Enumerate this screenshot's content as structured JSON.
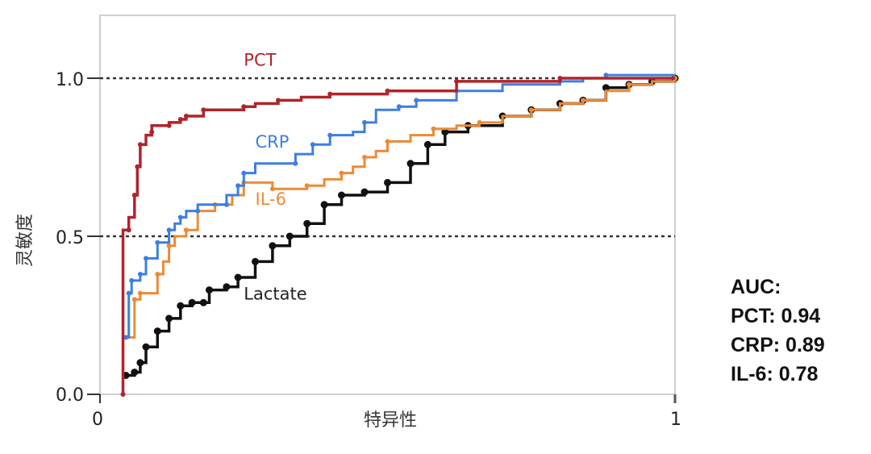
{
  "chart_data": {
    "type": "line",
    "title": "",
    "xlabel": "特异性",
    "ylabel": "灵敏度",
    "xlim": [
      0,
      1
    ],
    "ylim": [
      0,
      1.0
    ],
    "x_ticks": [
      "0",
      "1"
    ],
    "y_ticks": [
      "0.0",
      "0.5",
      "1.0"
    ],
    "reference_lines": [
      {
        "axis": "y",
        "value": 1.0,
        "style": "dotted"
      },
      {
        "axis": "y",
        "value": 0.5,
        "style": "dotted"
      }
    ],
    "grid": false,
    "legend": "inline labels",
    "series": [
      {
        "name": "PCT",
        "color": "#b2232a",
        "label_pos": {
          "x": 0.25,
          "y": 1.04
        },
        "points": [
          [
            0.04,
            0.0
          ],
          [
            0.04,
            0.52
          ],
          [
            0.05,
            0.52
          ],
          [
            0.05,
            0.56
          ],
          [
            0.06,
            0.63
          ],
          [
            0.065,
            0.63
          ],
          [
            0.065,
            0.72
          ],
          [
            0.07,
            0.72
          ],
          [
            0.07,
            0.79
          ],
          [
            0.08,
            0.82
          ],
          [
            0.09,
            0.83
          ],
          [
            0.09,
            0.85
          ],
          [
            0.12,
            0.85
          ],
          [
            0.12,
            0.86
          ],
          [
            0.14,
            0.87
          ],
          [
            0.15,
            0.87
          ],
          [
            0.15,
            0.88
          ],
          [
            0.18,
            0.89
          ],
          [
            0.18,
            0.9
          ],
          [
            0.22,
            0.9
          ],
          [
            0.25,
            0.91
          ],
          [
            0.27,
            0.92
          ],
          [
            0.31,
            0.93
          ],
          [
            0.35,
            0.94
          ],
          [
            0.4,
            0.95
          ],
          [
            0.5,
            0.95
          ],
          [
            0.5,
            0.96
          ],
          [
            0.62,
            0.96
          ],
          [
            0.62,
            0.99
          ],
          [
            0.8,
            0.99
          ],
          [
            0.8,
            1.0
          ],
          [
            1.0,
            1.0
          ]
        ]
      },
      {
        "name": "CRP",
        "color": "#3c7fe0",
        "label_pos": {
          "x": 0.27,
          "y": 0.78
        },
        "points": [
          [
            0.045,
            0.18
          ],
          [
            0.05,
            0.18
          ],
          [
            0.05,
            0.32
          ],
          [
            0.055,
            0.32
          ],
          [
            0.055,
            0.36
          ],
          [
            0.07,
            0.36
          ],
          [
            0.07,
            0.38
          ],
          [
            0.08,
            0.38
          ],
          [
            0.08,
            0.43
          ],
          [
            0.1,
            0.43
          ],
          [
            0.1,
            0.48
          ],
          [
            0.12,
            0.48
          ],
          [
            0.12,
            0.52
          ],
          [
            0.13,
            0.54
          ],
          [
            0.14,
            0.56
          ],
          [
            0.15,
            0.58
          ],
          [
            0.17,
            0.58
          ],
          [
            0.17,
            0.6
          ],
          [
            0.22,
            0.6
          ],
          [
            0.22,
            0.63
          ],
          [
            0.24,
            0.66
          ],
          [
            0.25,
            0.66
          ],
          [
            0.25,
            0.7
          ],
          [
            0.27,
            0.73
          ],
          [
            0.34,
            0.73
          ],
          [
            0.34,
            0.76
          ],
          [
            0.37,
            0.79
          ],
          [
            0.4,
            0.79
          ],
          [
            0.4,
            0.82
          ],
          [
            0.44,
            0.83
          ],
          [
            0.46,
            0.86
          ],
          [
            0.48,
            0.9
          ],
          [
            0.52,
            0.91
          ],
          [
            0.55,
            0.91
          ],
          [
            0.55,
            0.93
          ],
          [
            0.6,
            0.93
          ],
          [
            0.62,
            0.96
          ],
          [
            0.7,
            0.98
          ],
          [
            0.8,
            0.99
          ],
          [
            0.84,
            1.0
          ],
          [
            0.88,
            1.01
          ],
          [
            1.0,
            1.01
          ]
        ]
      },
      {
        "name": "IL-6",
        "color": "#ed8a35",
        "label_pos": {
          "x": 0.27,
          "y": 0.6
        },
        "points": [
          [
            0.045,
            0.18
          ],
          [
            0.06,
            0.18
          ],
          [
            0.06,
            0.3
          ],
          [
            0.07,
            0.3
          ],
          [
            0.07,
            0.32
          ],
          [
            0.1,
            0.32
          ],
          [
            0.1,
            0.38
          ],
          [
            0.11,
            0.42
          ],
          [
            0.12,
            0.47
          ],
          [
            0.13,
            0.5
          ],
          [
            0.15,
            0.52
          ],
          [
            0.17,
            0.58
          ],
          [
            0.2,
            0.6
          ],
          [
            0.23,
            0.63
          ],
          [
            0.25,
            0.67
          ],
          [
            0.28,
            0.67
          ],
          [
            0.3,
            0.65
          ],
          [
            0.34,
            0.65
          ],
          [
            0.36,
            0.66
          ],
          [
            0.39,
            0.68
          ],
          [
            0.42,
            0.7
          ],
          [
            0.44,
            0.72
          ],
          [
            0.46,
            0.75
          ],
          [
            0.48,
            0.77
          ],
          [
            0.5,
            0.8
          ],
          [
            0.54,
            0.82
          ],
          [
            0.58,
            0.84
          ],
          [
            0.62,
            0.85
          ],
          [
            0.66,
            0.86
          ],
          [
            0.7,
            0.88
          ],
          [
            0.75,
            0.9
          ],
          [
            0.8,
            0.92
          ],
          [
            0.84,
            0.93
          ],
          [
            0.88,
            0.96
          ],
          [
            0.92,
            0.98
          ],
          [
            0.96,
            0.99
          ],
          [
            1.0,
            1.0
          ]
        ]
      },
      {
        "name": "Lactate",
        "color": "#111111",
        "label_pos": {
          "x": 0.25,
          "y": 0.3
        },
        "points": [
          [
            0.045,
            0.06
          ],
          [
            0.06,
            0.07
          ],
          [
            0.07,
            0.1
          ],
          [
            0.08,
            0.15
          ],
          [
            0.1,
            0.2
          ],
          [
            0.12,
            0.24
          ],
          [
            0.14,
            0.28
          ],
          [
            0.16,
            0.29
          ],
          [
            0.18,
            0.29
          ],
          [
            0.19,
            0.33
          ],
          [
            0.22,
            0.34
          ],
          [
            0.24,
            0.37
          ],
          [
            0.27,
            0.42
          ],
          [
            0.3,
            0.47
          ],
          [
            0.33,
            0.5
          ],
          [
            0.36,
            0.54
          ],
          [
            0.39,
            0.6
          ],
          [
            0.42,
            0.63
          ],
          [
            0.46,
            0.64
          ],
          [
            0.5,
            0.67
          ],
          [
            0.54,
            0.73
          ],
          [
            0.57,
            0.79
          ],
          [
            0.6,
            0.83
          ],
          [
            0.64,
            0.85
          ],
          [
            0.7,
            0.88
          ],
          [
            0.75,
            0.9
          ],
          [
            0.8,
            0.92
          ],
          [
            0.84,
            0.93
          ],
          [
            0.88,
            0.97
          ],
          [
            0.92,
            0.98
          ],
          [
            0.96,
            0.99
          ],
          [
            1.0,
            1.0
          ]
        ]
      }
    ],
    "annotations": [
      "AUC:",
      "PCT: 0.94",
      "CRP: 0.89",
      "IL-6: 0.78"
    ]
  },
  "axes": {
    "xlabel": "特异性",
    "ylabel": "灵敏度",
    "x_tick_0": "0",
    "x_tick_1": "1",
    "y_tick_0": "0.0",
    "y_tick_05": "0.5",
    "y_tick_1": "1.0"
  },
  "auc": {
    "title": "AUC:",
    "pct": "PCT: 0.94",
    "crp": "CRP: 0.89",
    "il6": "IL-6: 0.78"
  }
}
